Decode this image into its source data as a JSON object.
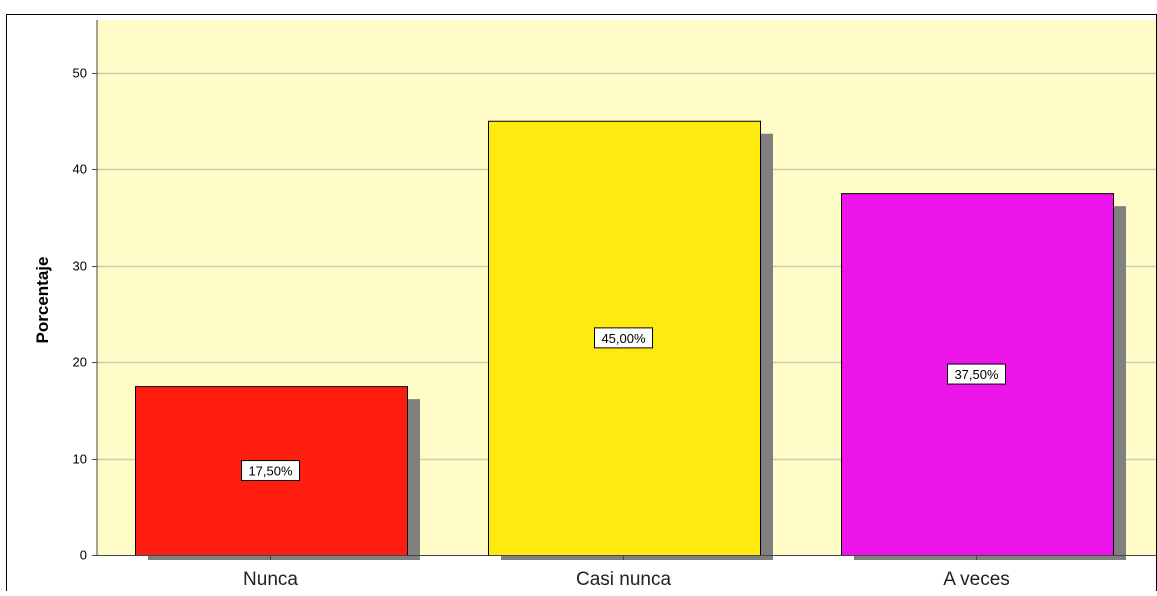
{
  "chart_data": {
    "type": "bar",
    "title": "",
    "xlabel": "",
    "ylabel": "Porcentaje",
    "ylim": [
      0,
      55
    ],
    "yticks": [
      0,
      10,
      20,
      30,
      40,
      50
    ],
    "grid": true,
    "categories": [
      "Nunca",
      "Casi nunca",
      "A veces"
    ],
    "values": [
      17.5,
      45.0,
      37.5
    ],
    "data_labels": [
      "17,50%",
      "45,00%",
      "37,50%"
    ],
    "colors": [
      "#ff1e10",
      "#ffea10",
      "#ec14e8"
    ],
    "plot_background": "#fffcc8",
    "gridline_color": "#cdcdb0",
    "shadow_color": "#808080"
  }
}
